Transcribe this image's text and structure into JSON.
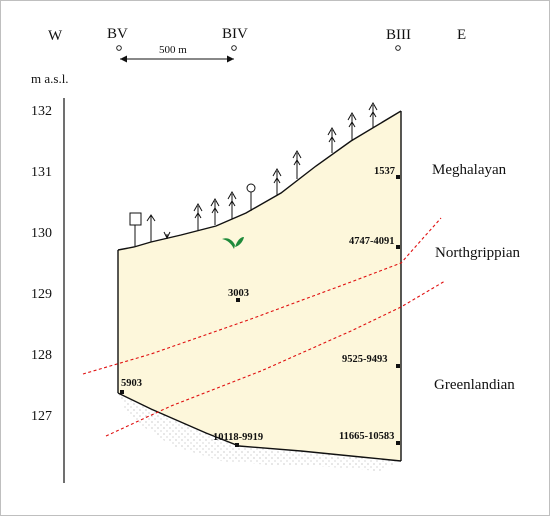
{
  "directions": {
    "west": "W",
    "east": "E"
  },
  "boreholes": {
    "bv": "BV",
    "biv": "BIV",
    "biii": "BIII"
  },
  "scale_bar_label": "500 m",
  "y_axis": {
    "unit_label": "m a.s.l.",
    "ticks": [
      "132",
      "131",
      "130",
      "129",
      "128",
      "127"
    ]
  },
  "stages": {
    "upper": "Meghalayan",
    "middle": "Northgrippian",
    "lower": "Greenlandian"
  },
  "ages": {
    "a1537": "1537",
    "a4747": "4747-4091",
    "a3003": "3003",
    "a9525": "9525-9493",
    "a5903": "5903",
    "a10118": "10118-9919",
    "a11665": "11665-10583"
  },
  "colors": {
    "fill": "#fdf7db",
    "boundary": "#e01010",
    "leaf": "#1f8a3a",
    "ink": "#111111"
  }
}
